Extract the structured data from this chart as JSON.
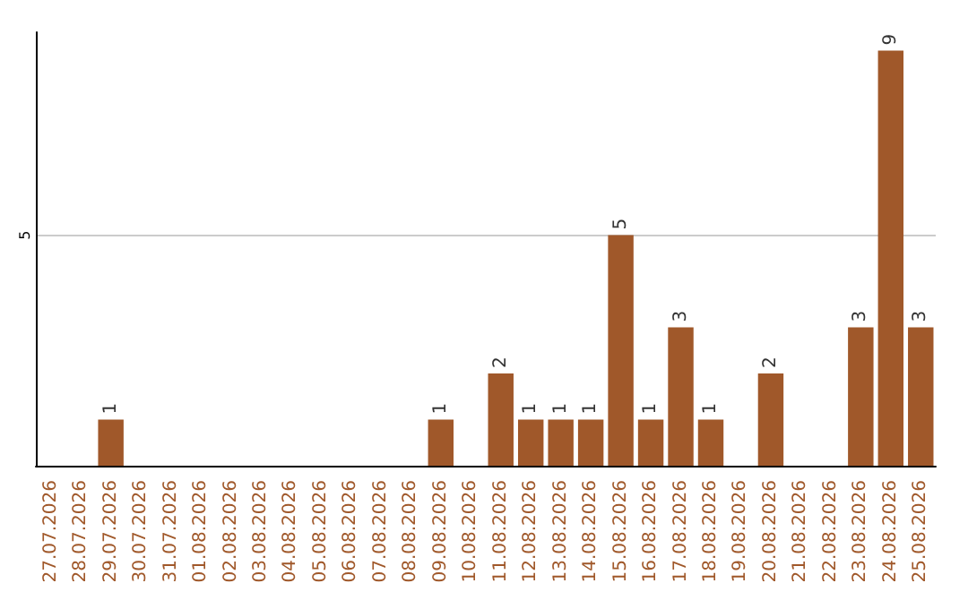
{
  "chart_data": {
    "type": "bar",
    "categories": [
      "27.07.2026",
      "28.07.2026",
      "29.07.2026",
      "30.07.2026",
      "31.07.2026",
      "01.08.2026",
      "02.08.2026",
      "03.08.2026",
      "04.08.2026",
      "05.08.2026",
      "06.08.2026",
      "07.08.2026",
      "08.08.2026",
      "09.08.2026",
      "10.08.2026",
      "11.08.2026",
      "12.08.2026",
      "13.08.2026",
      "14.08.2026",
      "15.08.2026",
      "16.08.2026",
      "17.08.2026",
      "18.08.2026",
      "19.08.2026",
      "20.08.2026",
      "21.08.2026",
      "22.08.2026",
      "23.08.2026",
      "24.08.2026",
      "25.08.2026"
    ],
    "values": [
      0,
      0,
      1,
      0,
      0,
      0,
      0,
      0,
      0,
      0,
      0,
      0,
      0,
      1,
      0,
      2,
      1,
      1,
      1,
      5,
      1,
      3,
      1,
      0,
      2,
      0,
      0,
      3,
      9,
      3
    ],
    "value_labels": [
      null,
      null,
      "1",
      null,
      null,
      null,
      null,
      null,
      null,
      null,
      null,
      null,
      null,
      "1",
      null,
      "2",
      "1",
      "1",
      "1",
      "5",
      "1",
      "3",
      "1",
      null,
      "2",
      null,
      null,
      "3",
      "9",
      "3"
    ],
    "color": "#a0582a",
    "ylim": [
      0,
      9.4
    ],
    "yticks": [
      5
    ],
    "grid": "y"
  }
}
